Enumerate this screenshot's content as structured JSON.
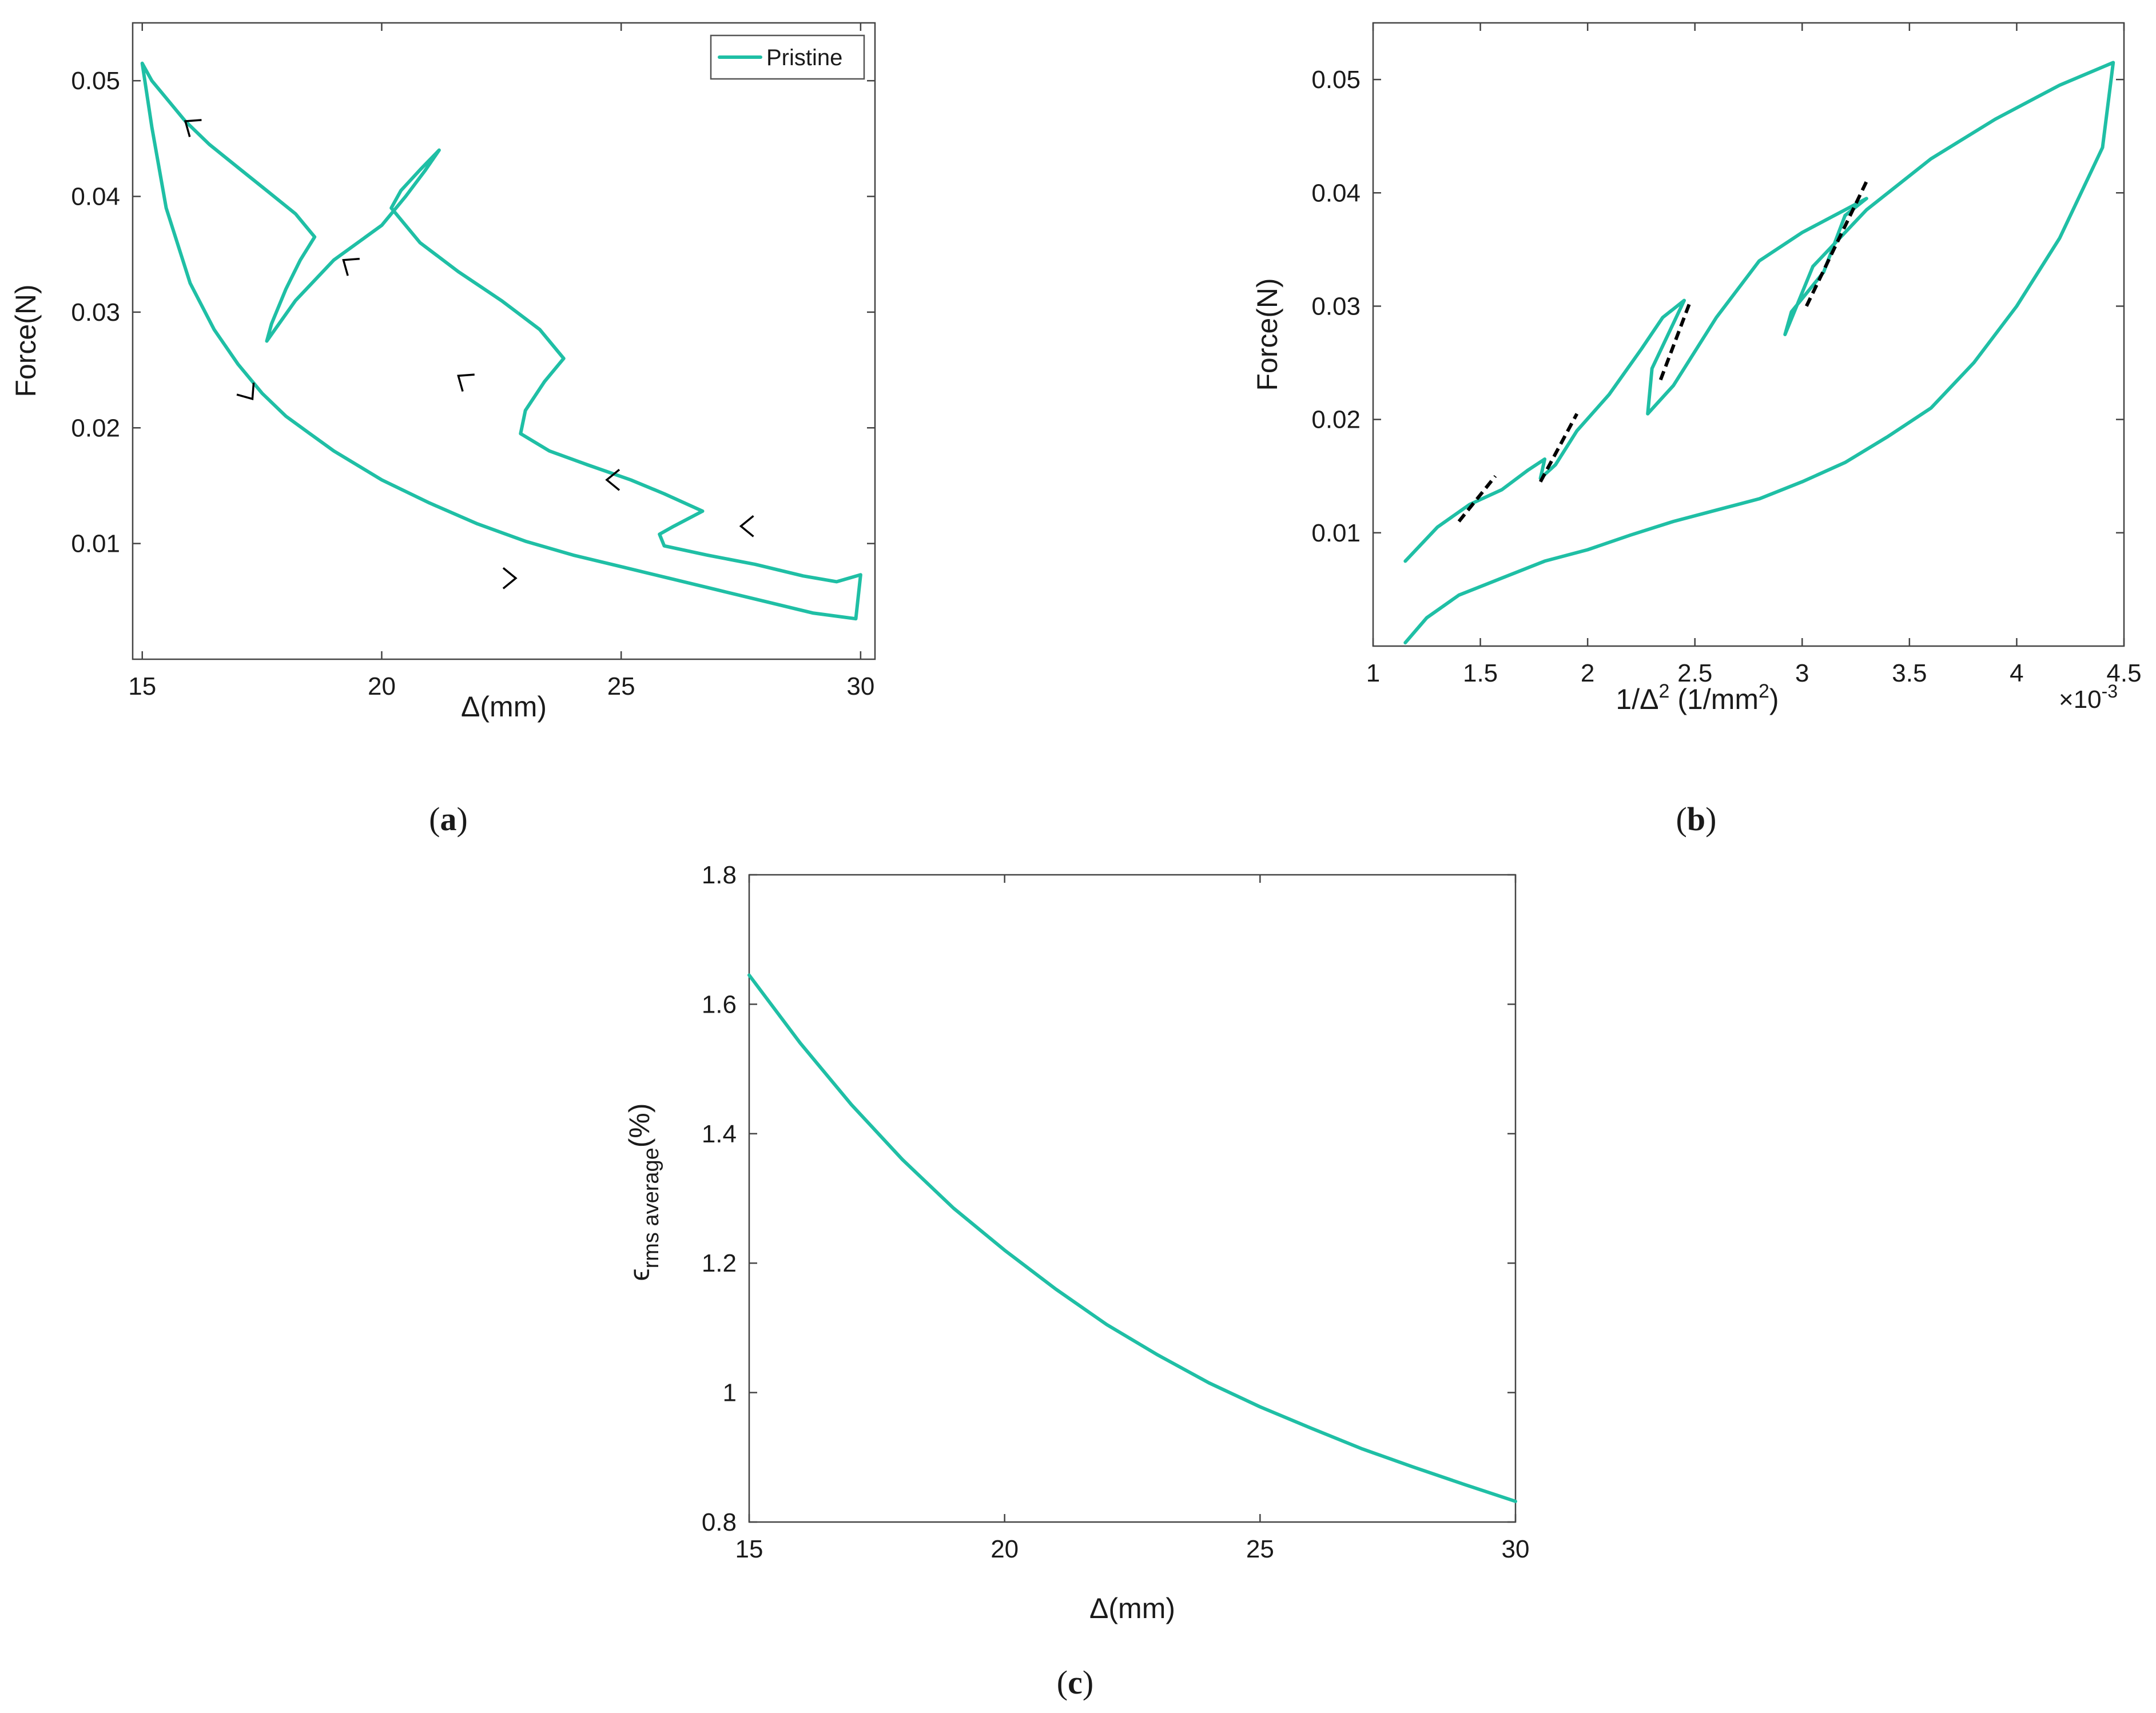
{
  "figure": {
    "panels": [
      {
        "key": "a",
        "label_open": "(",
        "label_letter": "a",
        "label_close": ")"
      },
      {
        "key": "b",
        "label_open": "(",
        "label_letter": "b",
        "label_close": ")"
      },
      {
        "key": "c",
        "label_open": "(",
        "label_letter": "c",
        "label_close": ")"
      }
    ]
  },
  "colors": {
    "series": "#1fbfa5",
    "fit": "#000000",
    "arrow": "#000000",
    "axis": "#444444"
  },
  "chart_data": [
    {
      "id": "a",
      "type": "line",
      "title": "",
      "xlabel": "Δ(mm)",
      "ylabel": "Force(N)",
      "xlim": [
        14.8,
        30.3
      ],
      "ylim": [
        0,
        0.055
      ],
      "xticks": [
        15,
        20,
        25,
        30
      ],
      "xtick_labels": [
        "15",
        "20",
        "25",
        "30"
      ],
      "yticks": [
        0.01,
        0.02,
        0.03,
        0.04,
        0.05
      ],
      "ytick_labels": [
        "0.01",
        "0.02",
        "0.03",
        "0.04",
        "0.05"
      ],
      "grid": false,
      "legend": {
        "position": "top-right",
        "entries": [
          "Pristine"
        ]
      },
      "series": [
        {
          "name": "Pristine",
          "x": [
            15.0,
            15.2,
            15.5,
            15.9,
            16.4,
            17.0,
            17.6,
            18.2,
            18.6,
            18.3,
            18.0,
            17.7,
            17.6,
            18.2,
            19.0,
            20.0,
            20.5,
            20.9,
            21.2,
            20.8,
            20.4,
            20.2,
            20.8,
            21.6,
            22.5,
            23.3,
            23.8,
            23.4,
            23.0,
            22.9,
            23.5,
            24.3,
            25.2,
            25.9,
            26.7,
            26.1,
            25.8,
            25.9,
            26.8,
            27.8,
            28.8,
            29.5,
            30.0,
            29.9,
            29.0,
            28.0,
            27.0,
            26.0,
            25.0,
            24.0,
            23.0,
            22.0,
            21.0,
            20.0,
            19.0,
            18.5,
            18.0,
            17.5,
            17.0,
            16.5,
            16.0,
            15.5,
            15.2,
            15.0
          ],
          "y": [
            0.0515,
            0.05,
            0.0485,
            0.0465,
            0.0445,
            0.0425,
            0.0405,
            0.0385,
            0.0365,
            0.0345,
            0.032,
            0.029,
            0.0275,
            0.031,
            0.0345,
            0.0375,
            0.04,
            0.0422,
            0.044,
            0.0423,
            0.0405,
            0.039,
            0.036,
            0.0335,
            0.031,
            0.0285,
            0.026,
            0.024,
            0.0215,
            0.0195,
            0.018,
            0.0168,
            0.0155,
            0.0143,
            0.0128,
            0.0115,
            0.0108,
            0.0098,
            0.009,
            0.0082,
            0.0072,
            0.0067,
            0.0073,
            0.0035,
            0.004,
            0.005,
            0.006,
            0.007,
            0.008,
            0.009,
            0.0102,
            0.0117,
            0.0135,
            0.0155,
            0.018,
            0.0195,
            0.021,
            0.023,
            0.0255,
            0.0285,
            0.0325,
            0.039,
            0.046,
            0.0515
          ]
        }
      ],
      "annotations": [
        {
          "type": "arrow",
          "direction": "up-left",
          "at": [
            15.9,
            0.0465
          ]
        },
        {
          "type": "arrow",
          "direction": "up-left",
          "at": [
            19.2,
            0.0345
          ]
        },
        {
          "type": "arrow",
          "direction": "up-left",
          "at": [
            21.6,
            0.0245
          ]
        },
        {
          "type": "arrow",
          "direction": "left",
          "at": [
            24.7,
            0.0155
          ]
        },
        {
          "type": "arrow",
          "direction": "left",
          "at": [
            27.5,
            0.0115
          ]
        },
        {
          "type": "arrow",
          "direction": "down-right",
          "at": [
            17.3,
            0.0225
          ]
        },
        {
          "type": "arrow",
          "direction": "right",
          "at": [
            22.8,
            0.007
          ]
        }
      ]
    },
    {
      "id": "b",
      "type": "line",
      "title": "",
      "xlabel": "1/Δ² (1/mm²)",
      "xlabel_parts": {
        "base": "1/Δ",
        "exp": "2",
        "unit_open": " (1/mm",
        "unit_exp": "2",
        "unit_close": ")"
      },
      "ylabel": "Force(N)",
      "x_scale_note": {
        "prefix": "×10",
        "exp": "-3"
      },
      "xlim": [
        1.0,
        4.5
      ],
      "ylim": [
        0,
        0.055
      ],
      "xticks": [
        1,
        1.5,
        2,
        2.5,
        3,
        3.5,
        4,
        4.5
      ],
      "xtick_labels": [
        "1",
        "1.5",
        "2",
        "2.5",
        "3",
        "3.5",
        "4",
        "4.5"
      ],
      "yticks": [
        0.01,
        0.02,
        0.03,
        0.04,
        0.05
      ],
      "ytick_labels": [
        "0.01",
        "0.02",
        "0.03",
        "0.04",
        "0.05"
      ],
      "grid": false,
      "series": [
        {
          "name": "Pristine",
          "x": [
            1.15,
            1.3,
            1.45,
            1.6,
            1.72,
            1.8,
            1.78,
            1.85,
            1.95,
            2.1,
            2.25,
            2.35,
            2.45,
            2.3,
            2.28,
            2.4,
            2.6,
            2.8,
            3.0,
            3.3,
            3.2,
            3.1,
            2.95,
            2.92,
            3.05,
            3.3,
            3.6,
            3.9,
            4.2,
            4.45,
            4.4,
            4.2,
            4.0,
            3.8,
            3.6,
            3.4,
            3.2,
            3.0,
            2.8,
            2.6,
            2.4,
            2.2,
            2.0,
            1.8,
            1.6,
            1.4,
            1.25,
            1.15
          ],
          "y": [
            0.0075,
            0.0105,
            0.0125,
            0.0138,
            0.0155,
            0.0165,
            0.0148,
            0.016,
            0.019,
            0.0222,
            0.0262,
            0.029,
            0.0305,
            0.0245,
            0.0205,
            0.023,
            0.029,
            0.034,
            0.0365,
            0.0395,
            0.038,
            0.033,
            0.0295,
            0.0275,
            0.0335,
            0.0385,
            0.043,
            0.0465,
            0.0495,
            0.0515,
            0.044,
            0.036,
            0.03,
            0.025,
            0.021,
            0.0185,
            0.0162,
            0.0145,
            0.013,
            0.012,
            0.011,
            0.0098,
            0.0085,
            0.0075,
            0.006,
            0.0045,
            0.0025,
            0.0003
          ]
        }
      ],
      "fits": [
        {
          "x": [
            1.4,
            1.57
          ],
          "y": [
            0.011,
            0.015
          ]
        },
        {
          "x": [
            1.78,
            1.95
          ],
          "y": [
            0.0145,
            0.0205
          ]
        },
        {
          "x": [
            2.34,
            2.48
          ],
          "y": [
            0.0235,
            0.0305
          ]
        },
        {
          "x": [
            3.02,
            3.3
          ],
          "y": [
            0.03,
            0.041
          ]
        }
      ]
    },
    {
      "id": "c",
      "type": "line",
      "title": "",
      "xlabel": "Δ(mm)",
      "ylabel": "ε rms average (%)",
      "ylabel_parts": {
        "symbol": "ϵ",
        "sub": "rms average",
        "unit": "(%)"
      },
      "xlim": [
        15,
        30
      ],
      "ylim": [
        0.8,
        1.8
      ],
      "xticks": [
        15,
        20,
        25,
        30
      ],
      "xtick_labels": [
        "15",
        "20",
        "25",
        "30"
      ],
      "yticks": [
        0.8,
        1.0,
        1.2,
        1.4,
        1.6,
        1.8
      ],
      "ytick_labels": [
        "0.8",
        "1",
        "1.2",
        "1.4",
        "1.6",
        "1.8"
      ],
      "grid": false,
      "series": [
        {
          "name": "Pristine",
          "x": [
            15,
            16,
            17,
            18,
            19,
            20,
            21,
            22,
            23,
            24,
            25,
            26,
            27,
            28,
            29,
            30
          ],
          "y": [
            1.645,
            1.54,
            1.445,
            1.36,
            1.285,
            1.22,
            1.16,
            1.105,
            1.058,
            1.015,
            0.978,
            0.945,
            0.913,
            0.885,
            0.858,
            0.832
          ]
        }
      ]
    }
  ]
}
